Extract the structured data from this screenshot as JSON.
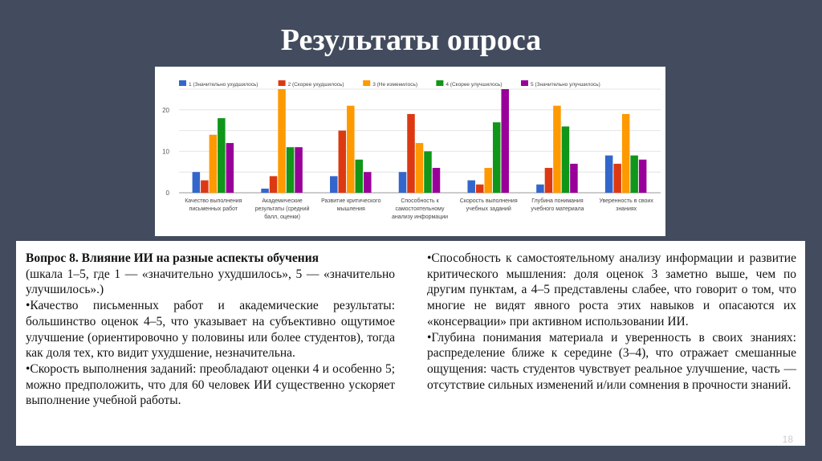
{
  "slide": {
    "title": "Результаты опроса",
    "page_number": "18"
  },
  "text": {
    "heading": "Вопрос 8. Влияние ИИ на разные аспекты обучения",
    "left": [
      "(шкала 1–5, где 1 — «значительно ухудшилось», 5 — «значительно улучшилось».)",
      "•Качество письменных работ и академические результаты: большинство оценок 4–5, что указывает на субъективно ощутимое улучшение (ориентировочно у половины или более студентов), тогда как доля тех, кто видит ухудшение, незначительна.",
      "•Скорость выполнения заданий: преобладают оценки 4 и особенно 5; можно предположить, что для 60 человек ИИ существенно ускоряет выполнение учебной работы."
    ],
    "right": [
      "•Способность к самостоятельному анализу информации и развитие критического мышления: доля оценок 3 заметно выше, чем по другим пунктам, а 4–5 представлены слабее, что говорит о том, что многие не видят явного роста этих навыков и опасаются их «консервации» при активном использовании ИИ.",
      "•Глубина понимания материала и уверенность в своих знаниях: распределение ближе к середине (3–4), что отражает смешанные ощущения: часть студентов чувствует реальное улучшение, часть — отсутствие сильных изменений и/или сомнения в прочности знаний."
    ]
  },
  "chart_data": {
    "type": "bar",
    "legend_position": "top",
    "grid": true,
    "ylim": [
      0,
      25
    ],
    "yticks": [
      "0",
      "10",
      "20"
    ],
    "categories": [
      [
        "Качество выполнения",
        "письменных работ"
      ],
      [
        "Академические",
        "результаты (средний",
        "балл, оценки)"
      ],
      [
        "Развитие критического",
        "мышления"
      ],
      [
        "Способность к",
        "самостоятельному",
        "анализу информации"
      ],
      [
        "Скорость выполнения",
        "учебных заданий"
      ],
      [
        "Глубина понимания",
        "учебного материала"
      ],
      [
        "Уверенность в своих",
        "знаниях"
      ]
    ],
    "series": [
      {
        "name": "1 (Значительно ухудшилось)",
        "color": "#3366cc",
        "values": [
          5,
          1,
          4,
          5,
          3,
          2,
          9
        ]
      },
      {
        "name": "2 (Скорее ухудшилось)",
        "color": "#dc3912",
        "values": [
          3,
          4,
          15,
          19,
          2,
          6,
          7
        ]
      },
      {
        "name": "3 (Не изменилось)",
        "color": "#ff9900",
        "values": [
          14,
          25,
          21,
          12,
          6,
          21,
          19
        ]
      },
      {
        "name": "4 (Скорее улучшилось)",
        "color": "#109618",
        "values": [
          18,
          11,
          8,
          10,
          17,
          16,
          9
        ]
      },
      {
        "name": "5 (Значительно улучшилось)",
        "color": "#990099",
        "values": [
          12,
          11,
          5,
          6,
          25,
          7,
          8
        ]
      }
    ]
  }
}
